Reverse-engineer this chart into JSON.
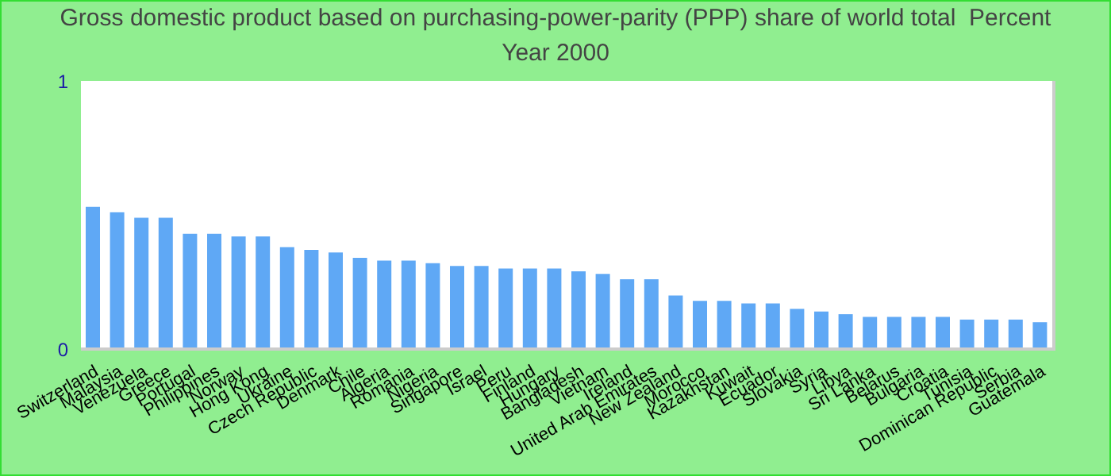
{
  "chart_data": {
    "type": "bar",
    "title": "Gross domestic product based on purchasing-power-parity (PPP) share of world total  Percent",
    "subtitle": "Year 2000",
    "categories": [
      "Switzerland",
      "Malaysia",
      "Venezuela",
      "Greece",
      "Portugal",
      "Philippines",
      "Norway",
      "Hong Kong",
      "Ukraine",
      "Czech Republic",
      "Denmark",
      "Chile",
      "Algeria",
      "Romania",
      "Nigeria",
      "Singapore",
      "Israel",
      "Peru",
      "Finland",
      "Hungary",
      "Bangladesh",
      "Vietnam",
      "Ireland",
      "United Arab Emirates",
      "New Zealand",
      "Morocco",
      "Kazakhstan",
      "Kuwait",
      "Ecuador",
      "Slovakia",
      "Syria",
      "Libya",
      "Sri Lanka",
      "Belarus",
      "Bulgaria",
      "Croatia",
      "Tunisia",
      "Dominican Republic",
      "Serbia",
      "Guatemala"
    ],
    "values": [
      0.53,
      0.51,
      0.49,
      0.49,
      0.43,
      0.43,
      0.42,
      0.42,
      0.38,
      0.37,
      0.36,
      0.34,
      0.33,
      0.33,
      0.32,
      0.31,
      0.31,
      0.3,
      0.3,
      0.3,
      0.29,
      0.28,
      0.26,
      0.26,
      0.2,
      0.18,
      0.18,
      0.17,
      0.17,
      0.15,
      0.14,
      0.13,
      0.12,
      0.12,
      0.12,
      0.12,
      0.11,
      0.11,
      0.11,
      0.1
    ],
    "color": "#5fa8f5",
    "ylim": [
      0,
      1
    ],
    "yticks": [
      0,
      1
    ],
    "grid": false
  }
}
